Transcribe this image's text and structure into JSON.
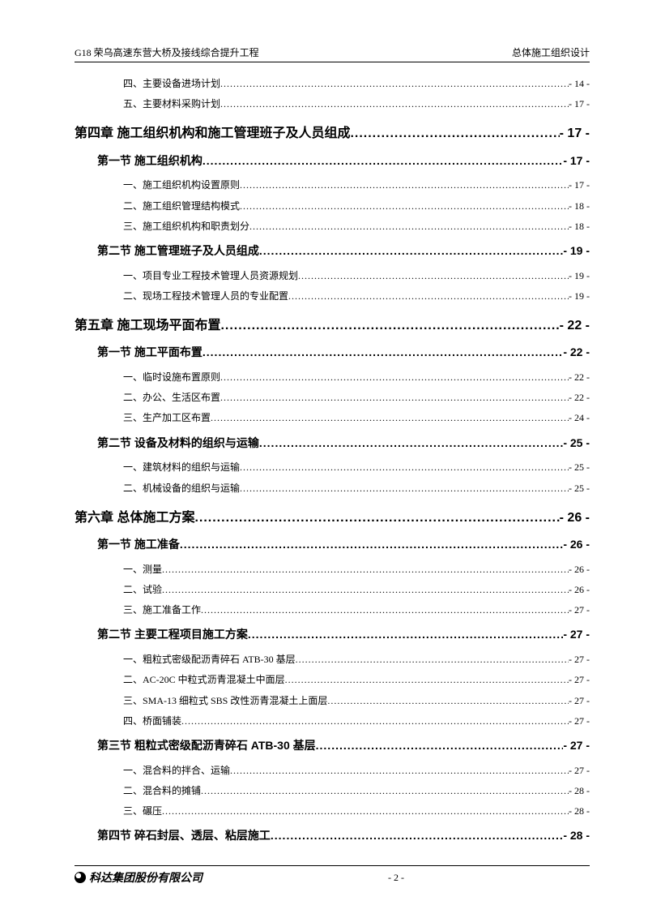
{
  "header": {
    "left": "G18 荣乌高速东营大桥及接线综合提升工程",
    "right": "总体施工组织设计"
  },
  "toc": [
    {
      "level": "item",
      "label": "四、主要设备进场计划",
      "page": "- 14 -"
    },
    {
      "level": "item",
      "label": "五、主要材料采购计划",
      "page": "- 17 -"
    },
    {
      "level": "chapter",
      "label": "第四章  施工组织机构和施工管理班子及人员组成",
      "page": "- 17 -"
    },
    {
      "level": "section",
      "label": "第一节  施工组织机构",
      "page": "- 17 -"
    },
    {
      "level": "item",
      "label": "一、施工组织机构设置原则",
      "page": "- 17 -"
    },
    {
      "level": "item",
      "label": "二、施工组织管理结构模式",
      "page": "- 18 -"
    },
    {
      "level": "item",
      "label": "三、施工组织机构和职责划分",
      "page": "- 18 -"
    },
    {
      "level": "section",
      "label": "第二节  施工管理班子及人员组成",
      "page": "- 19 -"
    },
    {
      "level": "item",
      "label": "一、项目专业工程技术管理人员资源规划",
      "page": "- 19 -"
    },
    {
      "level": "item",
      "label": "二、现场工程技术管理人员的专业配置",
      "page": "- 19 -"
    },
    {
      "level": "chapter",
      "label": "第五章  施工现场平面布置",
      "page": "- 22 -"
    },
    {
      "level": "section",
      "label": "第一节  施工平面布置",
      "page": "- 22 -"
    },
    {
      "level": "item",
      "label": "一、临时设施布置原则",
      "page": "- 22 -"
    },
    {
      "level": "item",
      "label": "二、办公、生活区布置",
      "page": "- 22 -"
    },
    {
      "level": "item",
      "label": "三、生产加工区布置",
      "page": "- 24 -"
    },
    {
      "level": "section",
      "label": "第二节  设备及材料的组织与运输",
      "page": "- 25 -"
    },
    {
      "level": "item",
      "label": "一、建筑材料的组织与运输",
      "page": "- 25 -"
    },
    {
      "level": "item",
      "label": "二、机械设备的组织与运输",
      "page": "- 25 -"
    },
    {
      "level": "chapter",
      "label": "第六章  总体施工方案",
      "page": "- 26 -"
    },
    {
      "level": "section",
      "label": "第一节  施工准备",
      "page": "- 26 -"
    },
    {
      "level": "item",
      "label": "一、测量",
      "page": "- 26 -"
    },
    {
      "level": "item",
      "label": "二、试验",
      "page": "- 26 -"
    },
    {
      "level": "item",
      "label": "三、施工准备工作",
      "page": "- 27 -"
    },
    {
      "level": "section",
      "label": "第二节  主要工程项目施工方案",
      "page": "- 27 -"
    },
    {
      "level": "item",
      "label": "一、粗粒式密级配沥青碎石 ATB-30 基层",
      "page": "- 27 -"
    },
    {
      "level": "item",
      "label": "二、AC-20C 中粒式沥青混凝土中面层",
      "page": "- 27 -"
    },
    {
      "level": "item",
      "label": "三、SMA-13 细粒式 SBS 改性沥青混凝土上面层",
      "page": "- 27 -"
    },
    {
      "level": "item",
      "label": "四、桥面铺装",
      "page": "- 27 -"
    },
    {
      "level": "section",
      "label": "第三节   粗粒式密级配沥青碎石 ATB-30 基层",
      "page": "- 27 -"
    },
    {
      "level": "item",
      "label": "一、混合料的拌合、运输",
      "page": "- 27 -"
    },
    {
      "level": "item",
      "label": "二、混合料的摊铺",
      "page": "- 28 -"
    },
    {
      "level": "item",
      "label": "三、碾压",
      "page": "- 28 -"
    },
    {
      "level": "section",
      "label": "第四节   碎石封层、透层、粘层施工",
      "page": "- 28 -"
    }
  ],
  "footer": {
    "company": "科达集团股份有限公司",
    "pagenum": "- 2 -"
  }
}
